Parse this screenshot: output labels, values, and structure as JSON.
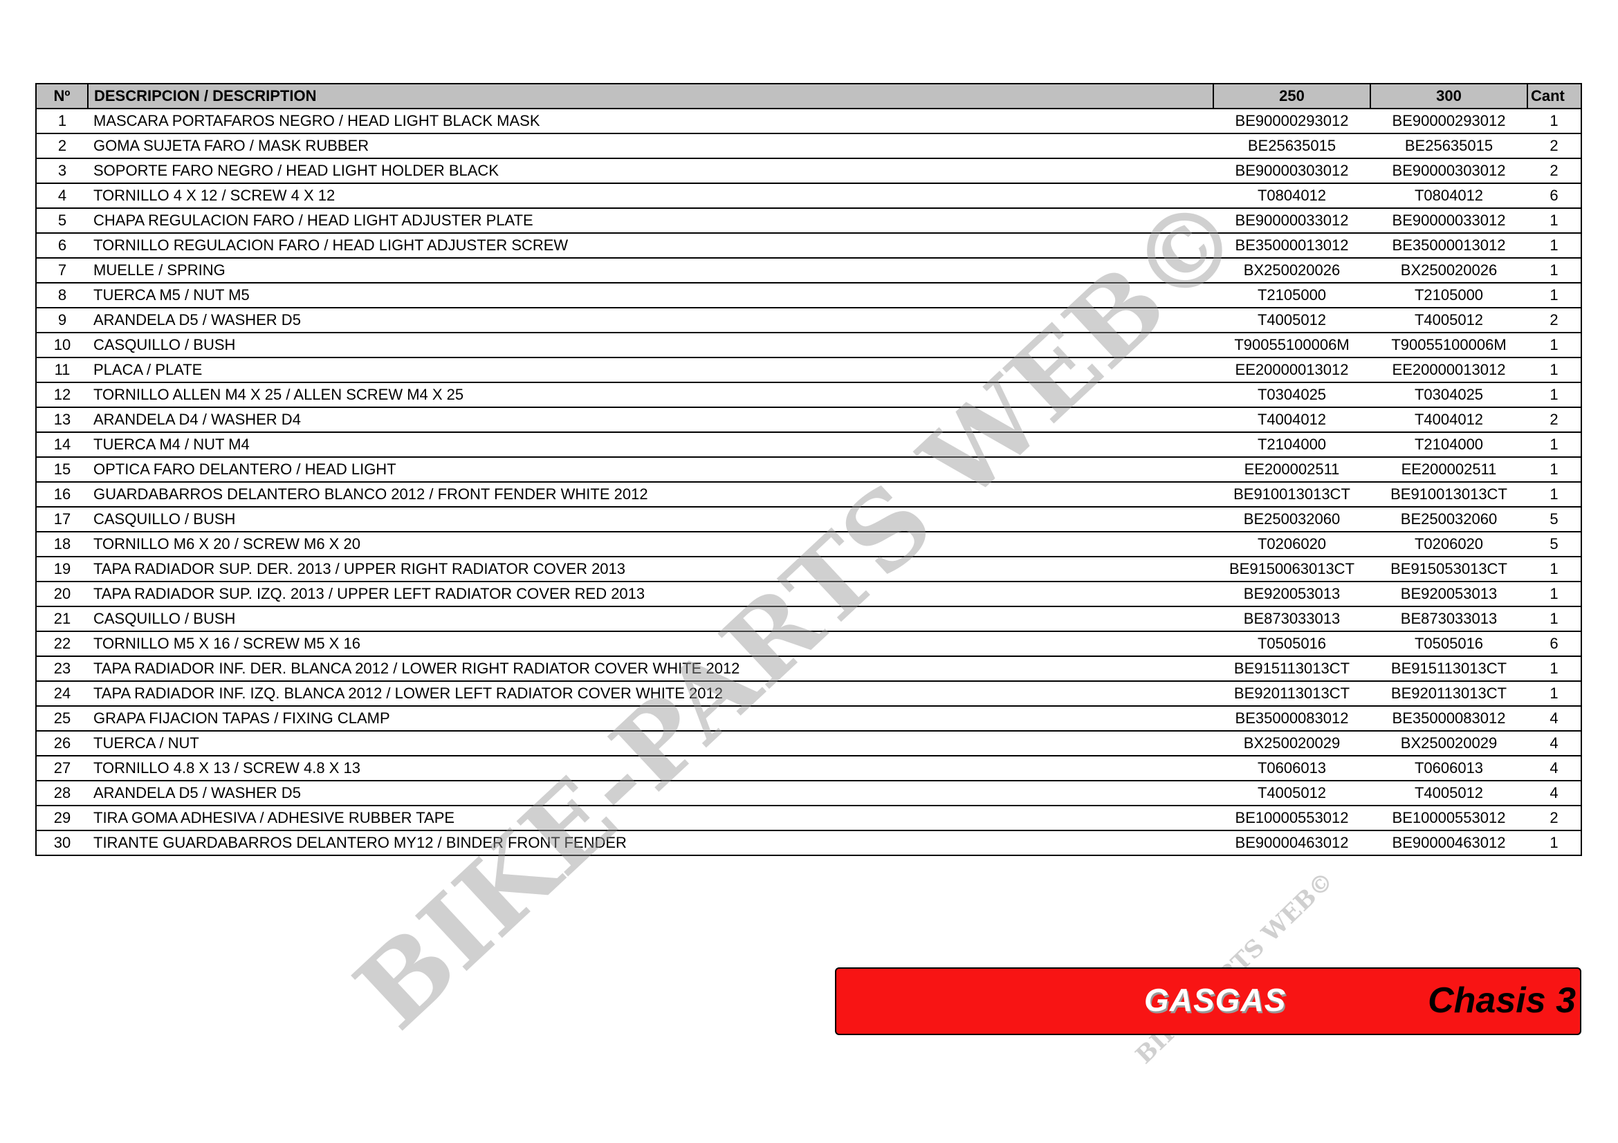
{
  "table": {
    "headers": {
      "no": "Nº",
      "description": "DESCRIPCION / DESCRIPTION",
      "col250": "250",
      "col300": "300",
      "qty": "Cant"
    },
    "rows": [
      {
        "no": "1",
        "description": "MASCARA PORTAFAROS NEGRO / HEAD LIGHT BLACK MASK",
        "c250": "BE90000293012",
        "c300": "BE90000293012",
        "qty": "1"
      },
      {
        "no": "2",
        "description": "GOMA SUJETA FARO / MASK RUBBER",
        "c250": "BE25635015",
        "c300": "BE25635015",
        "qty": "2"
      },
      {
        "no": "3",
        "description": "SOPORTE FARO NEGRO / HEAD LIGHT HOLDER BLACK",
        "c250": "BE90000303012",
        "c300": "BE90000303012",
        "qty": "2"
      },
      {
        "no": "4",
        "description": "TORNILLO 4 X 12 / SCREW 4 X 12",
        "c250": "T0804012",
        "c300": "T0804012",
        "qty": "6"
      },
      {
        "no": "5",
        "description": "CHAPA REGULACION FARO / HEAD LIGHT ADJUSTER PLATE",
        "c250": "BE90000033012",
        "c300": "BE90000033012",
        "qty": "1"
      },
      {
        "no": "6",
        "description": "TORNILLO REGULACION FARO / HEAD LIGHT ADJUSTER SCREW",
        "c250": "BE35000013012",
        "c300": "BE35000013012",
        "qty": "1"
      },
      {
        "no": "7",
        "description": "MUELLE / SPRING",
        "c250": "BX250020026",
        "c300": "BX250020026",
        "qty": "1"
      },
      {
        "no": "8",
        "description": "TUERCA M5 / NUT M5",
        "c250": "T2105000",
        "c300": "T2105000",
        "qty": "1"
      },
      {
        "no": "9",
        "description": "ARANDELA D5 / WASHER D5",
        "c250": "T4005012",
        "c300": "T4005012",
        "qty": "2"
      },
      {
        "no": "10",
        "description": "CASQUILLO / BUSH",
        "c250": "T90055100006M",
        "c300": "T90055100006M",
        "qty": "1"
      },
      {
        "no": "11",
        "description": "PLACA / PLATE",
        "c250": "EE20000013012",
        "c300": "EE20000013012",
        "qty": "1"
      },
      {
        "no": "12",
        "description": "TORNILLO ALLEN M4 X 25 / ALLEN SCREW M4 X 25",
        "c250": "T0304025",
        "c300": "T0304025",
        "qty": "1"
      },
      {
        "no": "13",
        "description": "ARANDELA D4 / WASHER D4",
        "c250": "T4004012",
        "c300": "T4004012",
        "qty": "2"
      },
      {
        "no": "14",
        "description": "TUERCA M4 / NUT M4",
        "c250": "T2104000",
        "c300": "T2104000",
        "qty": "1"
      },
      {
        "no": "15",
        "description": "OPTICA FARO DELANTERO / HEAD LIGHT",
        "c250": "EE200002511",
        "c300": "EE200002511",
        "qty": "1"
      },
      {
        "no": "16",
        "description": "GUARDABARROS DELANTERO BLANCO 2012 / FRONT FENDER WHITE 2012",
        "c250": "BE910013013CT",
        "c300": "BE910013013CT",
        "qty": "1"
      },
      {
        "no": "17",
        "description": "CASQUILLO / BUSH",
        "c250": "BE250032060",
        "c300": "BE250032060",
        "qty": "5"
      },
      {
        "no": "18",
        "description": "TORNILLO M6 X 20 / SCREW M6 X 20",
        "c250": "T0206020",
        "c300": "T0206020",
        "qty": "5"
      },
      {
        "no": "19",
        "description": "TAPA RADIADOR SUP. DER. 2013 / UPPER RIGHT RADIATOR COVER 2013",
        "c250": "BE9150063013CT",
        "c300": "BE915053013CT",
        "qty": "1"
      },
      {
        "no": "20",
        "description": "TAPA RADIADOR SUP. IZQ. 2013 / UPPER LEFT RADIATOR COVER RED 2013",
        "c250": "BE920053013",
        "c300": "BE920053013",
        "qty": "1"
      },
      {
        "no": "21",
        "description": "CASQUILLO / BUSH",
        "c250": "BE873033013",
        "c300": "BE873033013",
        "qty": "1"
      },
      {
        "no": "22",
        "description": "TORNILLO M5 X 16 / SCREW M5 X 16",
        "c250": "T0505016",
        "c300": "T0505016",
        "qty": "6"
      },
      {
        "no": "23",
        "description": "TAPA RADIADOR INF. DER. BLANCA 2012 / LOWER RIGHT RADIATOR COVER WHITE 2012",
        "c250": "BE915113013CT",
        "c300": "BE915113013CT",
        "qty": "1"
      },
      {
        "no": "24",
        "description": "TAPA RADIADOR INF. IZQ. BLANCA 2012 / LOWER LEFT RADIATOR COVER WHITE 2012",
        "c250": "BE920113013CT",
        "c300": "BE920113013CT",
        "qty": "1"
      },
      {
        "no": "25",
        "description": "GRAPA FIJACION TAPAS / FIXING CLAMP",
        "c250": "BE35000083012",
        "c300": "BE35000083012",
        "qty": "4"
      },
      {
        "no": "26",
        "description": "TUERCA / NUT",
        "c250": "BX250020029",
        "c300": "BX250020029",
        "qty": "4"
      },
      {
        "no": "27",
        "description": "TORNILLO 4.8 X 13 / SCREW 4.8 X 13",
        "c250": "T0606013",
        "c300": "T0606013",
        "qty": "4"
      },
      {
        "no": "28",
        "description": "ARANDELA D5 / WASHER D5",
        "c250": "T4005012",
        "c300": "T4005012",
        "qty": "4"
      },
      {
        "no": "29",
        "description": "TIRA GOMA ADHESIVA / ADHESIVE RUBBER TAPE",
        "c250": "BE10000553012",
        "c300": "BE10000553012",
        "qty": "2"
      },
      {
        "no": "30",
        "description": "TIRANTE GUARDABARROS DELANTERO MY12 / BINDER FRONT FENDER",
        "c250": "BE90000463012",
        "c300": "BE90000463012",
        "qty": "1"
      }
    ]
  },
  "banner": {
    "logo": "GASGAS",
    "title": "Chasis 3",
    "color": "#f81414"
  },
  "watermark": {
    "text": "BIKE-PARTS WEB©"
  },
  "colors": {
    "header_bg": "#c0c0c0"
  }
}
